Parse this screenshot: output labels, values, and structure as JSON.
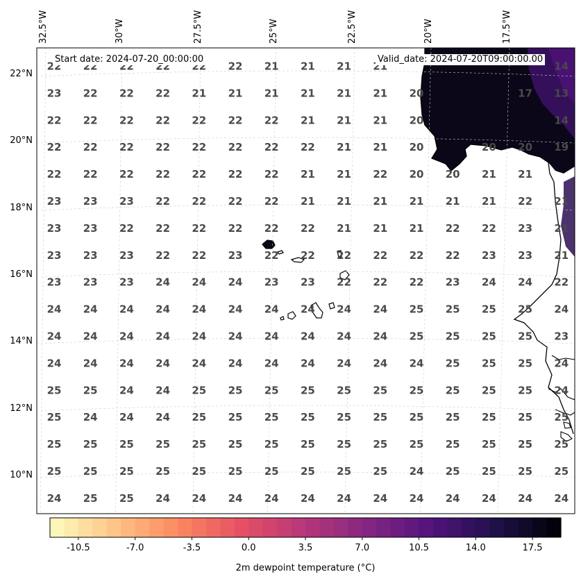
{
  "header": {
    "start_date": "Start date: 2024-07-20_00:00:00",
    "valid_date": "Valid_date: 2024-07-20T09:00:00.00"
  },
  "colors": {
    "land_dark": "#0b0718",
    "coast": "#000000",
    "grid": "#cccccc",
    "label": "#4a4a4a",
    "colormap": [
      "#fcfdbf",
      "#fec488",
      "#fc8961",
      "#e55064",
      "#b5367a",
      "#822681",
      "#51127c",
      "#1d1147",
      "#000004"
    ]
  },
  "longitude_labels": [
    "32.5°W",
    "30°W",
    "27.5°W",
    "25°W",
    "22.5°W",
    "20°W",
    "17.5°W"
  ],
  "latitude_labels": [
    "22°N",
    "20°N",
    "18°N",
    "16°N",
    "14°N",
    "12°N",
    "10°N"
  ],
  "grid_values": [
    [
      "22",
      "22",
      "22",
      "22",
      "22",
      "22",
      "21",
      "21",
      "21",
      "21",
      "",
      "",
      "",
      "",
      "14"
    ],
    [
      "23",
      "22",
      "22",
      "22",
      "21",
      "21",
      "21",
      "21",
      "21",
      "21",
      "20",
      "",
      "",
      "17",
      "13"
    ],
    [
      "22",
      "22",
      "22",
      "22",
      "22",
      "22",
      "22",
      "21",
      "21",
      "21",
      "20",
      "",
      "",
      "",
      "14"
    ],
    [
      "22",
      "22",
      "22",
      "22",
      "22",
      "22",
      "22",
      "22",
      "21",
      "21",
      "20",
      "",
      "20",
      "20",
      "19"
    ],
    [
      "22",
      "22",
      "22",
      "22",
      "22",
      "22",
      "22",
      "21",
      "21",
      "22",
      "20",
      "20",
      "21",
      "21",
      ""
    ],
    [
      "23",
      "23",
      "23",
      "22",
      "22",
      "22",
      "22",
      "21",
      "21",
      "21",
      "21",
      "21",
      "21",
      "22",
      "21"
    ],
    [
      "23",
      "23",
      "22",
      "22",
      "22",
      "22",
      "22",
      "22",
      "21",
      "21",
      "21",
      "22",
      "22",
      "23",
      "21"
    ],
    [
      "23",
      "23",
      "23",
      "22",
      "22",
      "23",
      "22",
      "22",
      "22",
      "22",
      "22",
      "22",
      "23",
      "23",
      "21"
    ],
    [
      "23",
      "23",
      "23",
      "24",
      "24",
      "24",
      "23",
      "23",
      "22",
      "22",
      "22",
      "23",
      "24",
      "24",
      "22"
    ],
    [
      "24",
      "24",
      "24",
      "24",
      "24",
      "24",
      "24",
      "24",
      "24",
      "24",
      "25",
      "25",
      "25",
      "25",
      "24"
    ],
    [
      "24",
      "24",
      "24",
      "24",
      "24",
      "24",
      "24",
      "24",
      "24",
      "24",
      "25",
      "25",
      "25",
      "25",
      "23"
    ],
    [
      "24",
      "24",
      "24",
      "24",
      "24",
      "24",
      "24",
      "24",
      "24",
      "24",
      "24",
      "25",
      "25",
      "25",
      "24"
    ],
    [
      "25",
      "25",
      "24",
      "24",
      "25",
      "25",
      "25",
      "25",
      "25",
      "25",
      "25",
      "25",
      "25",
      "25",
      "24"
    ],
    [
      "25",
      "24",
      "24",
      "24",
      "25",
      "25",
      "25",
      "25",
      "25",
      "25",
      "25",
      "25",
      "25",
      "25",
      "25"
    ],
    [
      "25",
      "25",
      "25",
      "25",
      "25",
      "25",
      "25",
      "25",
      "25",
      "25",
      "25",
      "25",
      "25",
      "25",
      "25"
    ],
    [
      "25",
      "25",
      "25",
      "25",
      "25",
      "25",
      "25",
      "25",
      "25",
      "25",
      "24",
      "25",
      "25",
      "25",
      "25"
    ],
    [
      "24",
      "25",
      "25",
      "24",
      "24",
      "24",
      "24",
      "24",
      "24",
      "24",
      "24",
      "24",
      "24",
      "24",
      "24"
    ]
  ],
  "colorbar": {
    "label": "2m dewpoint temperature ($^\\circ$C)",
    "display_label": "2m dewpoint temperature (°C)",
    "range": [
      -12.25,
      19.25
    ],
    "ticks": [
      "-10.5",
      "-7.0",
      "-3.5",
      "0.0",
      "3.5",
      "7.0",
      "10.5",
      "14.0",
      "17.5"
    ]
  }
}
